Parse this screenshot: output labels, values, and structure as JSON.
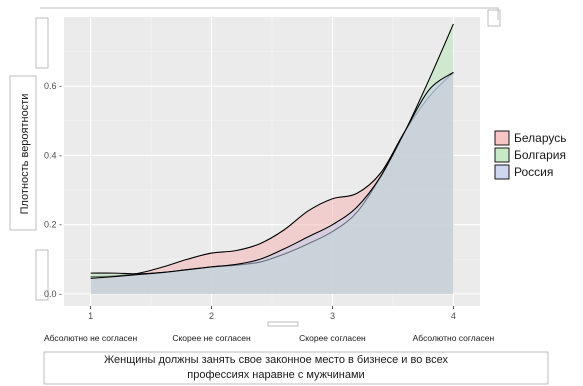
{
  "chart_data": {
    "type": "area",
    "subtype": "density",
    "ylabel": "Плотность вероятности",
    "xlabel_lines": [
      "Женщины должны занять свое законное место в бизнесе и во всех",
      "профессиях наравне с мужчинами"
    ],
    "x_ticks": [
      1,
      2,
      3,
      4
    ],
    "x_tick_labels": [
      "1",
      "2",
      "3",
      "4"
    ],
    "category_labels": [
      "Абсолютно не согласен",
      "Скорее не согласен",
      "Скорее согласен",
      "Абсолютно согласен"
    ],
    "y_ticks": [
      0.0,
      0.2,
      0.4,
      0.6
    ],
    "y_tick_labels": [
      "0.0 -",
      "0.2 -",
      "0.4 -",
      "0.6 -"
    ],
    "xlim": [
      0.78,
      4.22
    ],
    "ylim": [
      -0.035,
      0.8
    ],
    "grid": true,
    "legend_position": "right",
    "series": [
      {
        "name": "Беларусь",
        "color": "#f4b6b6",
        "x": [
          1.0,
          1.2,
          1.4,
          1.6,
          1.8,
          2.0,
          2.2,
          2.4,
          2.6,
          2.8,
          3.0,
          3.2,
          3.4,
          3.6,
          3.8,
          4.0
        ],
        "y": [
          0.05,
          0.052,
          0.06,
          0.078,
          0.1,
          0.118,
          0.125,
          0.145,
          0.185,
          0.24,
          0.275,
          0.29,
          0.35,
          0.47,
          0.57,
          0.64
        ]
      },
      {
        "name": "Болгария",
        "color": "#b9e3b9",
        "x": [
          1.0,
          1.2,
          1.4,
          1.6,
          1.8,
          2.0,
          2.2,
          2.4,
          2.6,
          2.8,
          3.0,
          3.2,
          3.4,
          3.6,
          3.8,
          4.0
        ],
        "y": [
          0.06,
          0.06,
          0.058,
          0.062,
          0.07,
          0.078,
          0.083,
          0.092,
          0.115,
          0.145,
          0.18,
          0.235,
          0.34,
          0.47,
          0.62,
          0.78
        ]
      },
      {
        "name": "Россия",
        "color": "#c3cdec",
        "x": [
          1.0,
          1.2,
          1.4,
          1.6,
          1.8,
          2.0,
          2.2,
          2.4,
          2.6,
          2.8,
          3.0,
          3.2,
          3.4,
          3.6,
          3.8,
          4.0
        ],
        "y": [
          0.045,
          0.05,
          0.056,
          0.062,
          0.07,
          0.078,
          0.085,
          0.1,
          0.13,
          0.165,
          0.2,
          0.25,
          0.34,
          0.47,
          0.59,
          0.64
        ]
      }
    ]
  }
}
